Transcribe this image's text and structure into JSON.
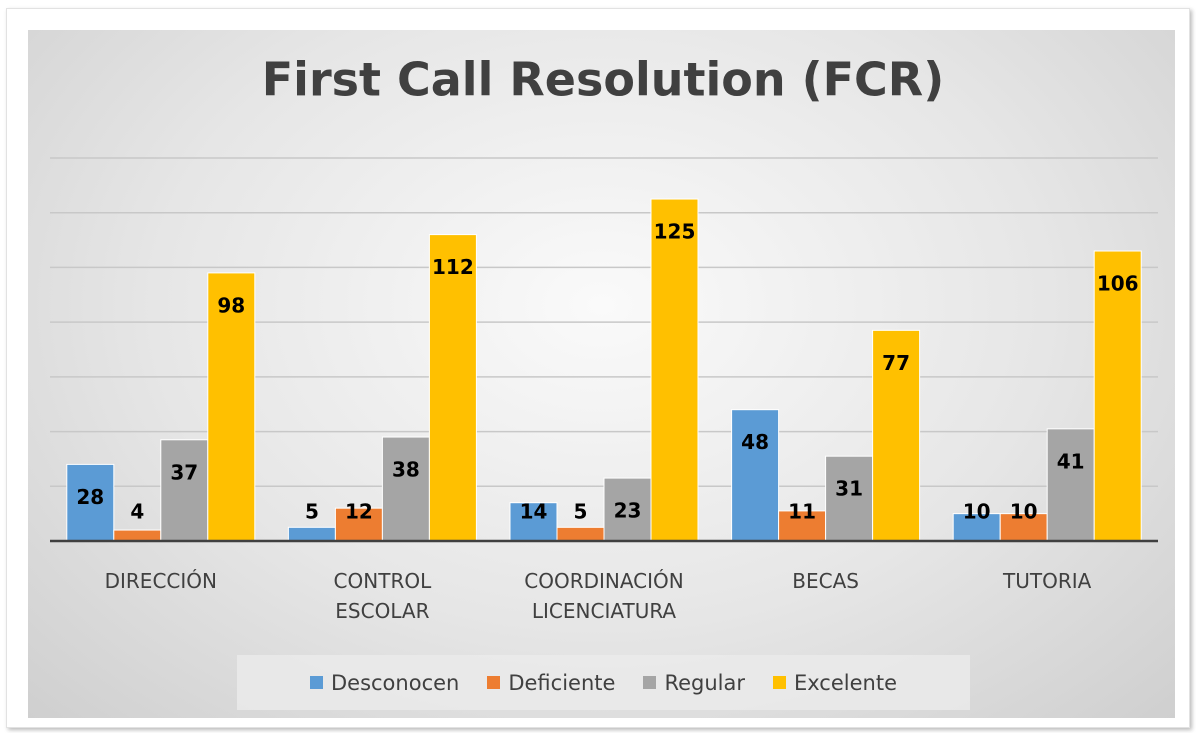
{
  "chart_data": {
    "type": "bar",
    "title": "First Call Resolution (FCR)",
    "categories": [
      "DIRECCIÓN",
      "CONTROL ESCOLAR",
      "COORDINACIÓN LICENCIATURA",
      "BECAS",
      "TUTORIA"
    ],
    "series": [
      {
        "name": "Desconocen",
        "color": "#5b9bd5",
        "values": [
          28,
          5,
          14,
          48,
          10
        ]
      },
      {
        "name": "Deficiente",
        "color": "#ed7d31",
        "values": [
          4,
          12,
          5,
          11,
          10
        ]
      },
      {
        "name": "Regular",
        "color": "#a5a5a5",
        "values": [
          37,
          38,
          23,
          31,
          41
        ]
      },
      {
        "name": "Excelente",
        "color": "#ffc000",
        "values": [
          98,
          112,
          125,
          77,
          106
        ]
      }
    ],
    "ylim": [
      0,
      140
    ],
    "yticks": [
      0,
      20,
      40,
      60,
      80,
      100,
      120,
      140
    ],
    "grid": true
  }
}
